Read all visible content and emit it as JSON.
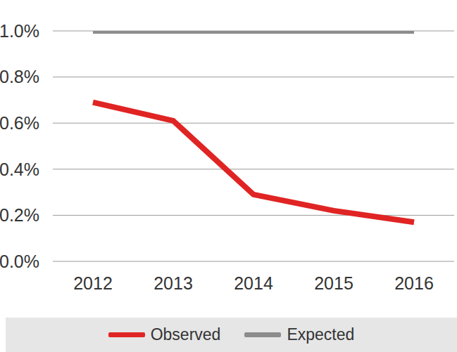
{
  "chart_data": {
    "type": "line",
    "categories": [
      "2012",
      "2013",
      "2014",
      "2015",
      "2016"
    ],
    "series": [
      {
        "name": "Observed",
        "color": "#e02424",
        "values": [
          0.69,
          0.61,
          0.29,
          0.22,
          0.17
        ]
      },
      {
        "name": "Expected",
        "color": "#8c8c8c",
        "values": [
          1.0,
          1.0,
          1.0,
          1.0,
          1.0
        ]
      }
    ],
    "ylim": [
      0,
      1.0
    ],
    "yticks": [
      {
        "value": 0,
        "label": "0.0%"
      },
      {
        "value": 0.2,
        "label": "0.2%"
      },
      {
        "value": 0.4,
        "label": "0.4%"
      },
      {
        "value": 0.6,
        "label": "0.6%"
      },
      {
        "value": 0.8,
        "label": "0.8%"
      },
      {
        "value": 1.0,
        "label": "1.0%"
      }
    ],
    "grid": true,
    "legend": "bottom"
  }
}
